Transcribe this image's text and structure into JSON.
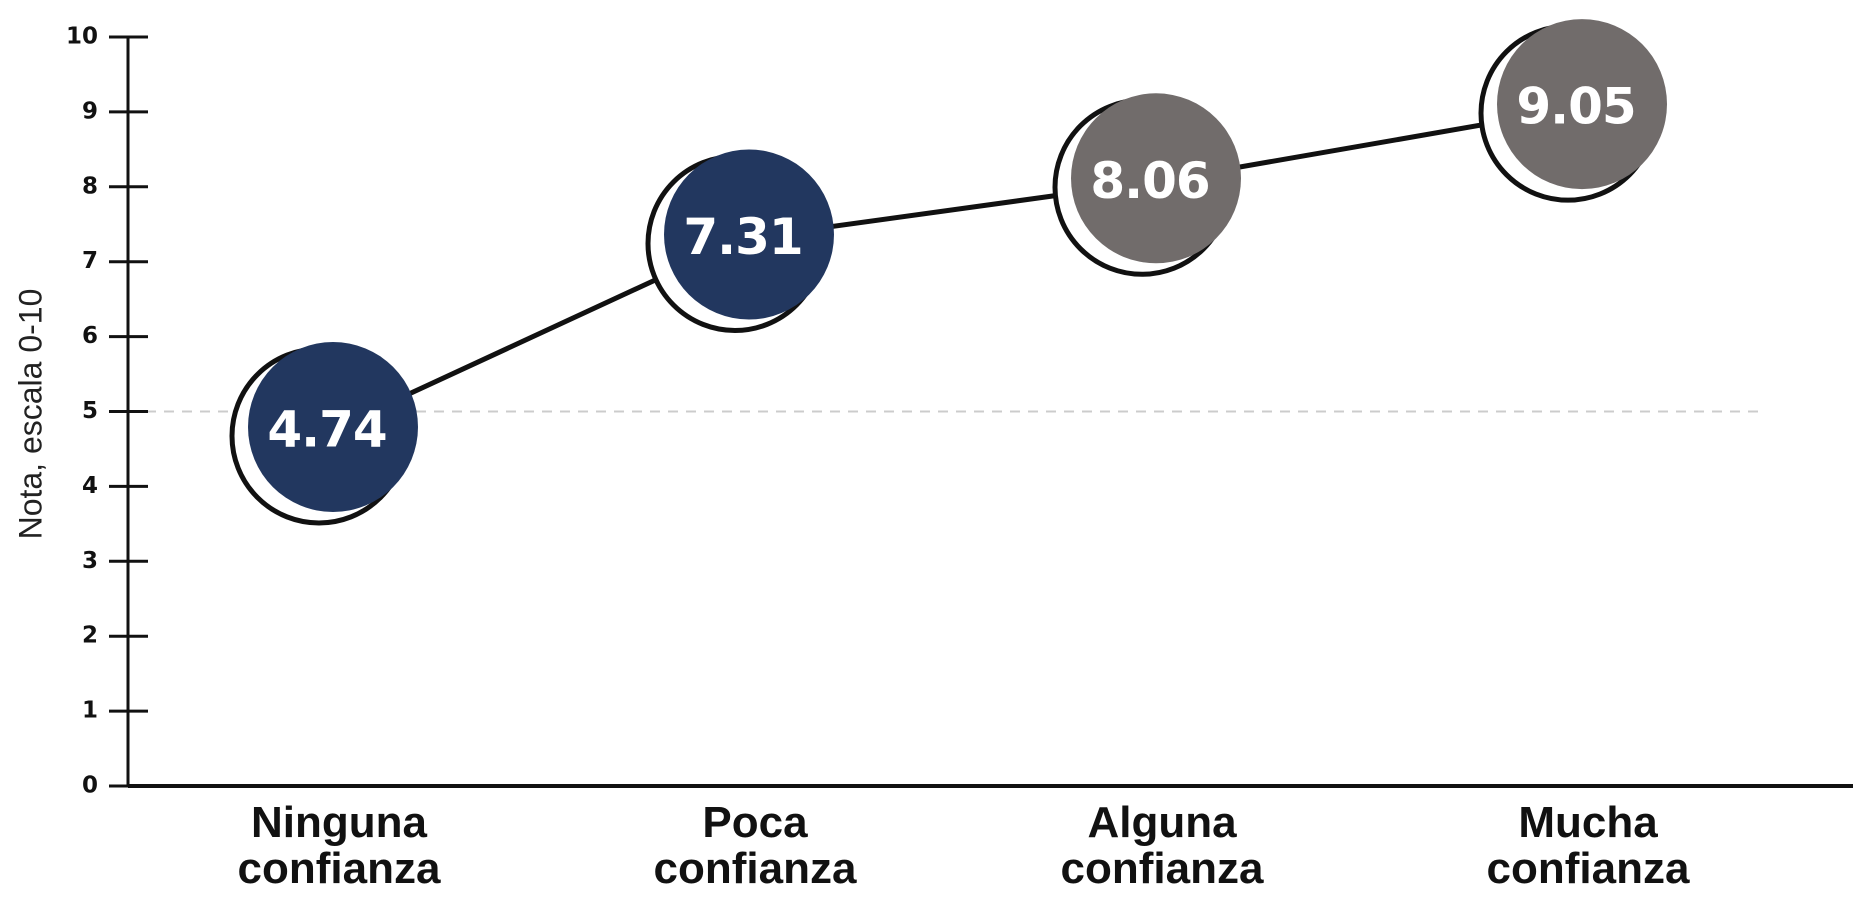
{
  "chart_data": {
    "type": "line",
    "y_label": "Nota, escala 0-10",
    "categories": [
      "Ninguna confianza",
      "Poca confianza",
      "Alguna confianza",
      "Mucha confianza"
    ],
    "values": [
      4.74,
      7.31,
      8.06,
      9.05
    ],
    "colors": [
      "#22375f",
      "#22375f",
      "#716c6b",
      "#716c6b"
    ],
    "line_color": "#111111",
    "ylim": [
      0,
      10
    ],
    "yticks": [
      0,
      1,
      2,
      3,
      4,
      5,
      6,
      7,
      8,
      9,
      10
    ],
    "reference_line": 5
  }
}
